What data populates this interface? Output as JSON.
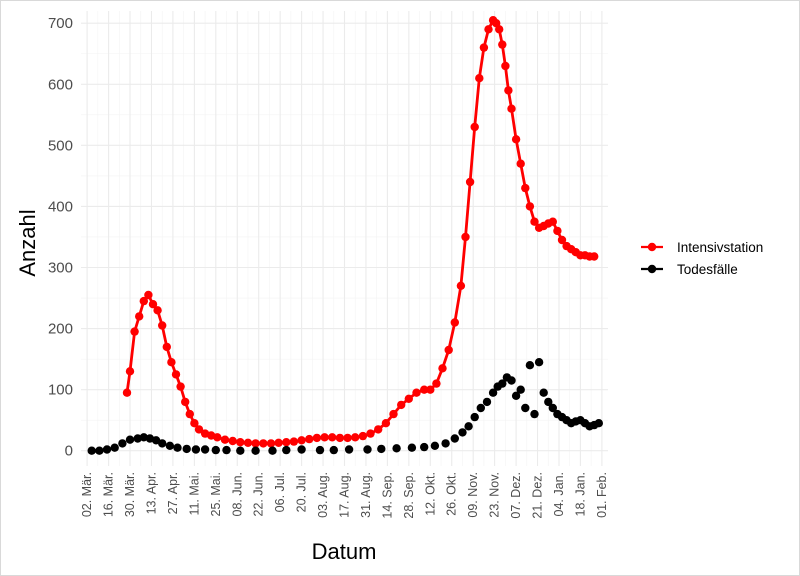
{
  "chart_data": {
    "type": "line",
    "xlabel": "Datum",
    "ylabel": "Anzahl",
    "ylim": [
      0,
      720
    ],
    "xlim": [
      "2020-02-27",
      "2021-02-05"
    ],
    "y_ticks": [
      0,
      100,
      200,
      300,
      400,
      500,
      600,
      700
    ],
    "x_ticks": [
      {
        "date": "2020-03-02",
        "label": "02. Mär."
      },
      {
        "date": "2020-03-16",
        "label": "16. Mär."
      },
      {
        "date": "2020-03-30",
        "label": "30. Mär."
      },
      {
        "date": "2020-04-13",
        "label": "13. Apr."
      },
      {
        "date": "2020-04-27",
        "label": "27. Apr."
      },
      {
        "date": "2020-05-11",
        "label": "11. Mai."
      },
      {
        "date": "2020-05-25",
        "label": "25. Mai."
      },
      {
        "date": "2020-06-08",
        "label": "08. Jun."
      },
      {
        "date": "2020-06-22",
        "label": "22. Jun."
      },
      {
        "date": "2020-07-06",
        "label": "06. Jul."
      },
      {
        "date": "2020-07-20",
        "label": "20. Jul."
      },
      {
        "date": "2020-08-03",
        "label": "03. Aug."
      },
      {
        "date": "2020-08-17",
        "label": "17. Aug."
      },
      {
        "date": "2020-08-31",
        "label": "31. Aug."
      },
      {
        "date": "2020-09-14",
        "label": "14. Sep."
      },
      {
        "date": "2020-09-28",
        "label": "28. Sep."
      },
      {
        "date": "2020-10-12",
        "label": "12. Okt."
      },
      {
        "date": "2020-10-26",
        "label": "26. Okt."
      },
      {
        "date": "2020-11-09",
        "label": "09. Nov."
      },
      {
        "date": "2020-11-23",
        "label": "23. Nov."
      },
      {
        "date": "2020-12-07",
        "label": "07. Dez."
      },
      {
        "date": "2020-12-21",
        "label": "21. Dez."
      },
      {
        "date": "2021-01-04",
        "label": "04. Jan."
      },
      {
        "date": "2021-01-18",
        "label": "18. Jan."
      },
      {
        "date": "2021-02-01",
        "label": "01. Feb."
      }
    ],
    "grid": true,
    "legend_position": "right",
    "series": [
      {
        "name": "Intensivstation",
        "color": "#ff0000",
        "x": [
          "2020-03-28",
          "2020-03-30",
          "2020-04-02",
          "2020-04-05",
          "2020-04-08",
          "2020-04-11",
          "2020-04-14",
          "2020-04-17",
          "2020-04-20",
          "2020-04-23",
          "2020-04-26",
          "2020-04-29",
          "2020-05-02",
          "2020-05-05",
          "2020-05-08",
          "2020-05-11",
          "2020-05-14",
          "2020-05-18",
          "2020-05-22",
          "2020-05-26",
          "2020-05-31",
          "2020-06-05",
          "2020-06-10",
          "2020-06-15",
          "2020-06-20",
          "2020-06-25",
          "2020-06-30",
          "2020-07-05",
          "2020-07-10",
          "2020-07-15",
          "2020-07-20",
          "2020-07-25",
          "2020-07-30",
          "2020-08-04",
          "2020-08-09",
          "2020-08-14",
          "2020-08-19",
          "2020-08-24",
          "2020-08-29",
          "2020-09-03",
          "2020-09-08",
          "2020-09-13",
          "2020-09-18",
          "2020-09-23",
          "2020-09-28",
          "2020-10-03",
          "2020-10-08",
          "2020-10-12",
          "2020-10-16",
          "2020-10-20",
          "2020-10-24",
          "2020-10-28",
          "2020-11-01",
          "2020-11-04",
          "2020-11-07",
          "2020-11-10",
          "2020-11-13",
          "2020-11-16",
          "2020-11-19",
          "2020-11-22",
          "2020-11-24",
          "2020-11-26",
          "2020-11-28",
          "2020-11-30",
          "2020-12-02",
          "2020-12-04",
          "2020-12-07",
          "2020-12-10",
          "2020-12-13",
          "2020-12-16",
          "2020-12-19",
          "2020-12-22",
          "2020-12-25",
          "2020-12-28",
          "2020-12-31",
          "2021-01-03",
          "2021-01-06",
          "2021-01-09",
          "2021-01-12",
          "2021-01-15",
          "2021-01-18",
          "2021-01-21",
          "2021-01-24",
          "2021-01-27"
        ],
        "values": [
          95,
          130,
          195,
          220,
          245,
          255,
          240,
          230,
          205,
          170,
          145,
          125,
          105,
          80,
          60,
          45,
          35,
          28,
          25,
          22,
          18,
          16,
          14,
          13,
          12,
          12,
          12,
          13,
          14,
          15,
          17,
          19,
          21,
          22,
          22,
          21,
          21,
          22,
          24,
          28,
          35,
          45,
          60,
          75,
          85,
          95,
          100,
          100,
          110,
          135,
          165,
          210,
          270,
          350,
          440,
          530,
          610,
          660,
          690,
          705,
          700,
          690,
          665,
          630,
          590,
          560,
          510,
          470,
          430,
          400,
          375,
          365,
          368,
          372,
          375,
          360,
          345,
          335,
          330,
          325,
          320,
          320,
          318,
          318
        ]
      },
      {
        "name": "Todesfälle",
        "color": "#000000",
        "x": [
          "2020-03-05",
          "2020-03-10",
          "2020-03-15",
          "2020-03-20",
          "2020-03-25",
          "2020-03-30",
          "2020-04-04",
          "2020-04-08",
          "2020-04-12",
          "2020-04-16",
          "2020-04-20",
          "2020-04-25",
          "2020-04-30",
          "2020-05-06",
          "2020-05-12",
          "2020-05-18",
          "2020-05-25",
          "2020-06-01",
          "2020-06-10",
          "2020-06-20",
          "2020-07-01",
          "2020-07-10",
          "2020-07-20",
          "2020-08-01",
          "2020-08-10",
          "2020-08-20",
          "2020-09-01",
          "2020-09-10",
          "2020-09-20",
          "2020-09-30",
          "2020-10-08",
          "2020-10-15",
          "2020-10-22",
          "2020-10-28",
          "2020-11-02",
          "2020-11-06",
          "2020-11-10",
          "2020-11-14",
          "2020-11-18",
          "2020-11-22",
          "2020-11-25",
          "2020-11-28",
          "2020-12-01",
          "2020-12-04",
          "2020-12-07",
          "2020-12-10",
          "2020-12-13",
          "2020-12-16",
          "2020-12-19",
          "2020-12-22",
          "2020-12-25",
          "2020-12-28",
          "2020-12-31",
          "2021-01-03",
          "2021-01-06",
          "2021-01-09",
          "2021-01-12",
          "2021-01-15",
          "2021-01-18",
          "2021-01-21",
          "2021-01-24",
          "2021-01-27",
          "2021-01-30"
        ],
        "values": [
          0,
          0,
          2,
          5,
          12,
          18,
          20,
          22,
          20,
          17,
          12,
          8,
          5,
          3,
          2,
          2,
          1,
          1,
          0,
          0,
          0,
          1,
          2,
          1,
          1,
          2,
          2,
          3,
          4,
          5,
          6,
          8,
          12,
          20,
          30,
          40,
          55,
          70,
          80,
          95,
          105,
          110,
          120,
          115,
          90,
          100,
          70,
          140,
          60,
          145,
          95,
          80,
          70,
          60,
          55,
          50,
          45,
          48,
          50,
          45,
          40,
          42,
          45
        ]
      }
    ]
  }
}
